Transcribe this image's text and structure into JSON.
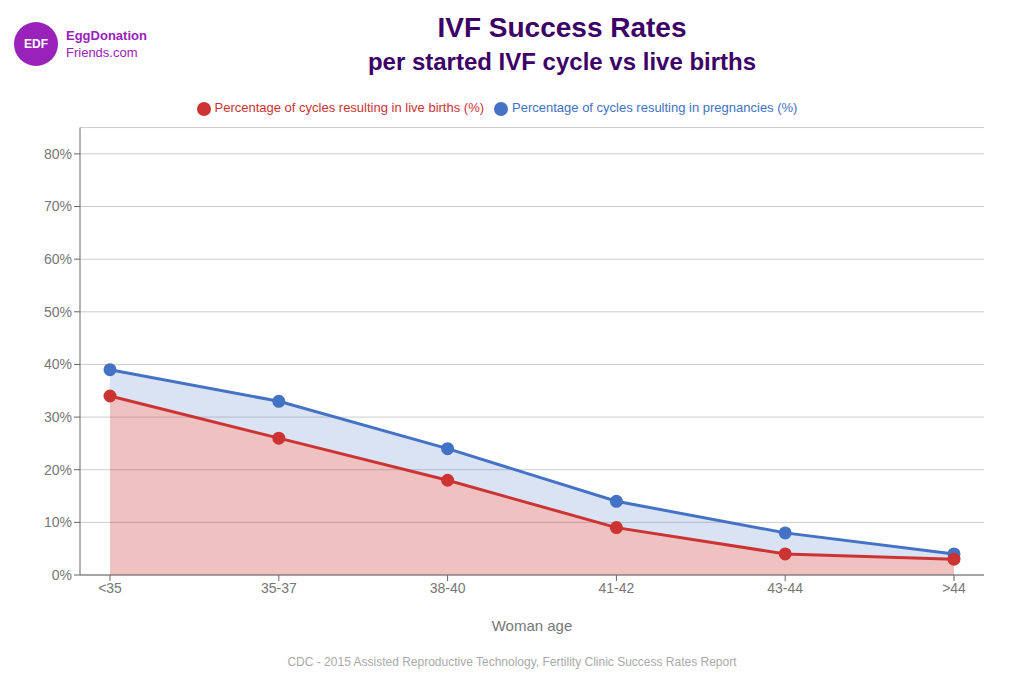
{
  "chart_data": {
    "type": "area",
    "title": "IVF Success Rates",
    "subtitle": "per started IVF cycle vs live births",
    "x_label": "Woman age",
    "categories": [
      "<35",
      "35-37",
      "38-40",
      "41-42",
      "43-44",
      ">44"
    ],
    "series": [
      {
        "name": "Percentage of cycles resulting in pregnancies (%)",
        "color": "#4472C4",
        "marker": "circle",
        "values": [
          39,
          33,
          24,
          14,
          8,
          4
        ]
      },
      {
        "name": "Percentage of cycles resulting in live births (%)",
        "color": "#cc3333",
        "marker": "circle",
        "values": [
          34,
          26,
          18,
          9,
          4,
          3
        ]
      }
    ],
    "ylim": [
      0,
      85
    ],
    "yticks": [
      {
        "value": 0,
        "label": "0%"
      },
      {
        "value": 10,
        "label": "10%"
      },
      {
        "value": 20,
        "label": "20%"
      },
      {
        "value": 30,
        "label": "30%"
      },
      {
        "value": 40,
        "label": "40%"
      },
      {
        "value": 50,
        "label": "50%"
      },
      {
        "value": 60,
        "label": "60%"
      },
      {
        "value": 70,
        "label": "70%"
      },
      {
        "value": 80,
        "label": "80%"
      }
    ],
    "grid": true,
    "legend": "top",
    "color": "#3d0066",
    "annotations": [
      {
        "text": "CDC - 2015 Assisted Reproductive Technology, Fertility Clinic Success Rates Report",
        "color": "#aaaaaa"
      },
      {
        "text": "EDF",
        "color": "#9922bb"
      },
      {
        "text": "EggDonation",
        "color": "#9922bb"
      },
      {
        "text": "Friends.com",
        "color": "#9922bb"
      }
    ]
  }
}
